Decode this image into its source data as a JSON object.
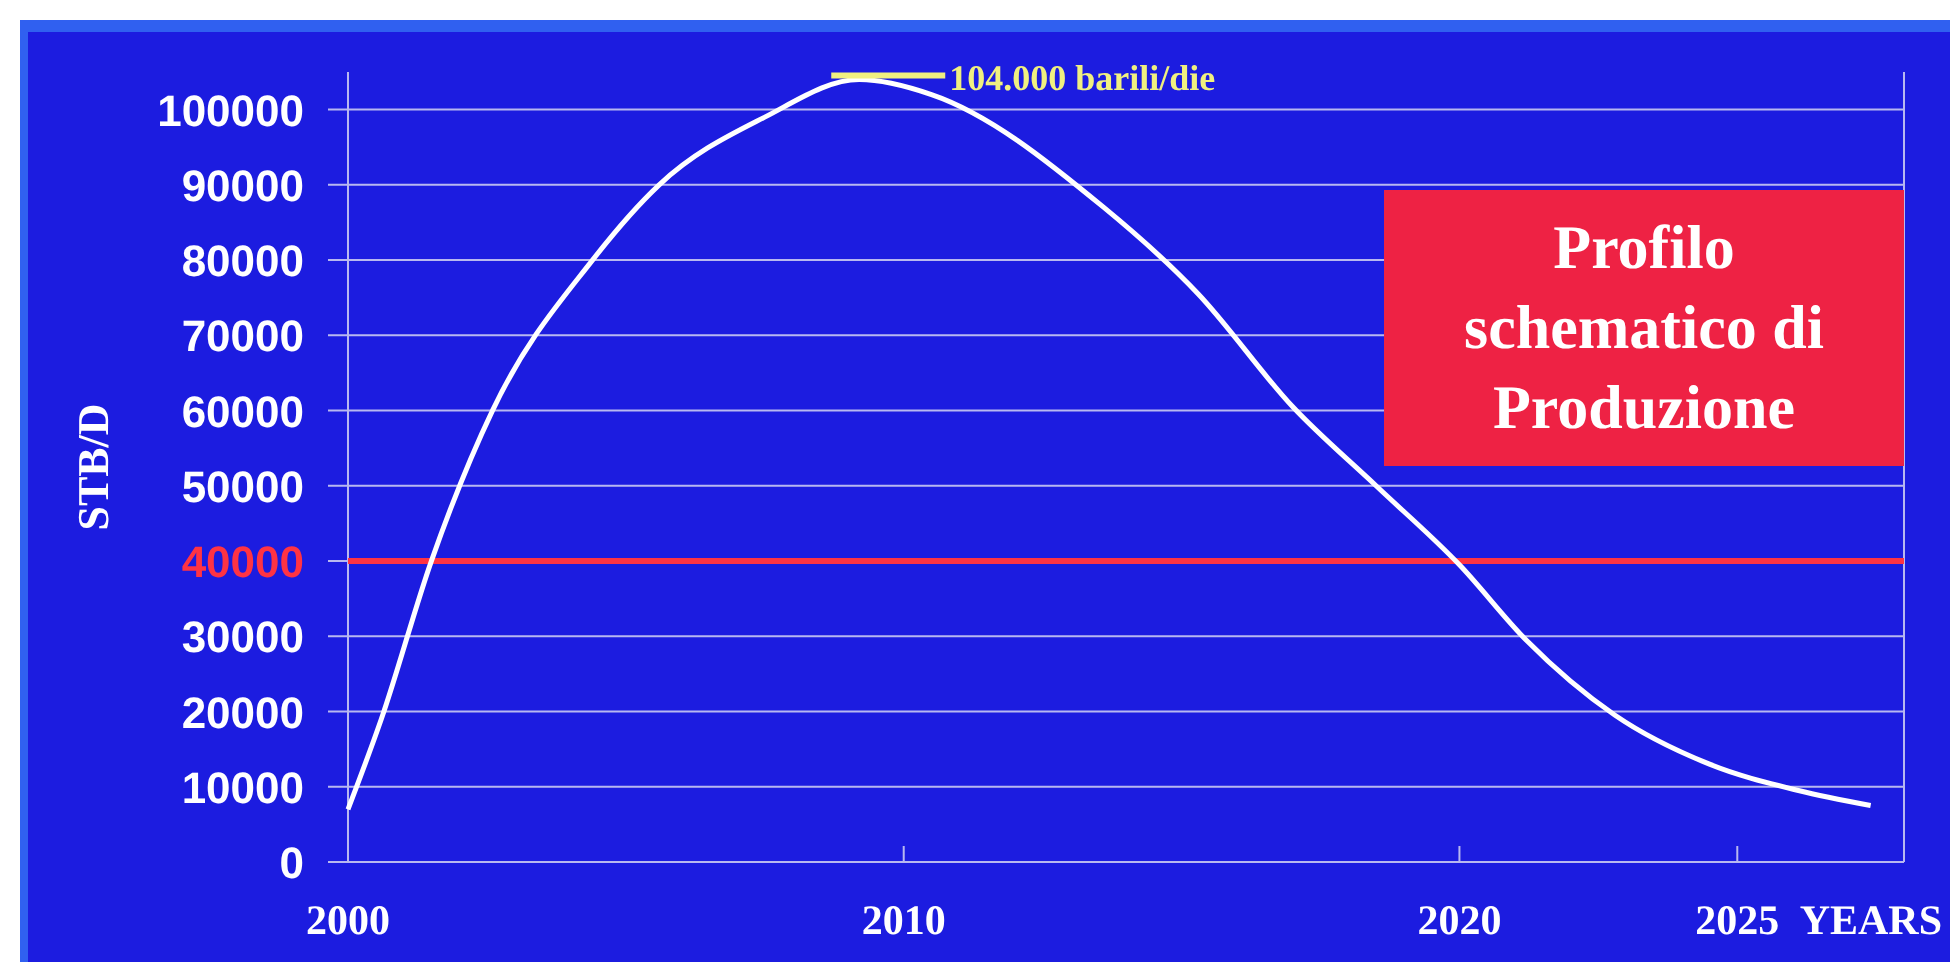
{
  "chart_data": {
    "type": "line",
    "title": "Profilo schematico di Produzione",
    "xlabel": "YEARS",
    "ylabel": "STB/D",
    "x": [
      2000,
      2000.6,
      2001.5,
      2002.6,
      2004.4,
      2005.6,
      2007.5,
      2009.2,
      2010.5,
      2013.6,
      2015.3,
      2017,
      2018.5,
      2020,
      2021.2,
      2022.8,
      2024.5,
      2026.1,
      2027.4
    ],
    "series": [
      {
        "color": "#ffffff",
        "values": [
          7000,
          19000,
          40000,
          60000,
          80000,
          90000,
          99000,
          104000,
          102000,
          87000,
          75500,
          60500,
          50000,
          39500,
          29500,
          19500,
          13000,
          9500,
          7500
        ]
      }
    ],
    "xlim": [
      2000,
      2028
    ],
    "xticks": [
      2000,
      2010,
      2020,
      2025
    ],
    "ylim": [
      0,
      105000
    ],
    "yticks": [
      0,
      10000,
      20000,
      30000,
      40000,
      50000,
      60000,
      70000,
      80000,
      90000,
      100000
    ],
    "grid": "y",
    "marker": "none",
    "line_style": "solid",
    "ref_lines": [
      {
        "axis": "y",
        "value": 40000,
        "color": "#ff3344"
      }
    ],
    "annotations": [
      {
        "text": "104.000 barili/die",
        "x": 2009.2,
        "y": 104000
      }
    ]
  }
}
